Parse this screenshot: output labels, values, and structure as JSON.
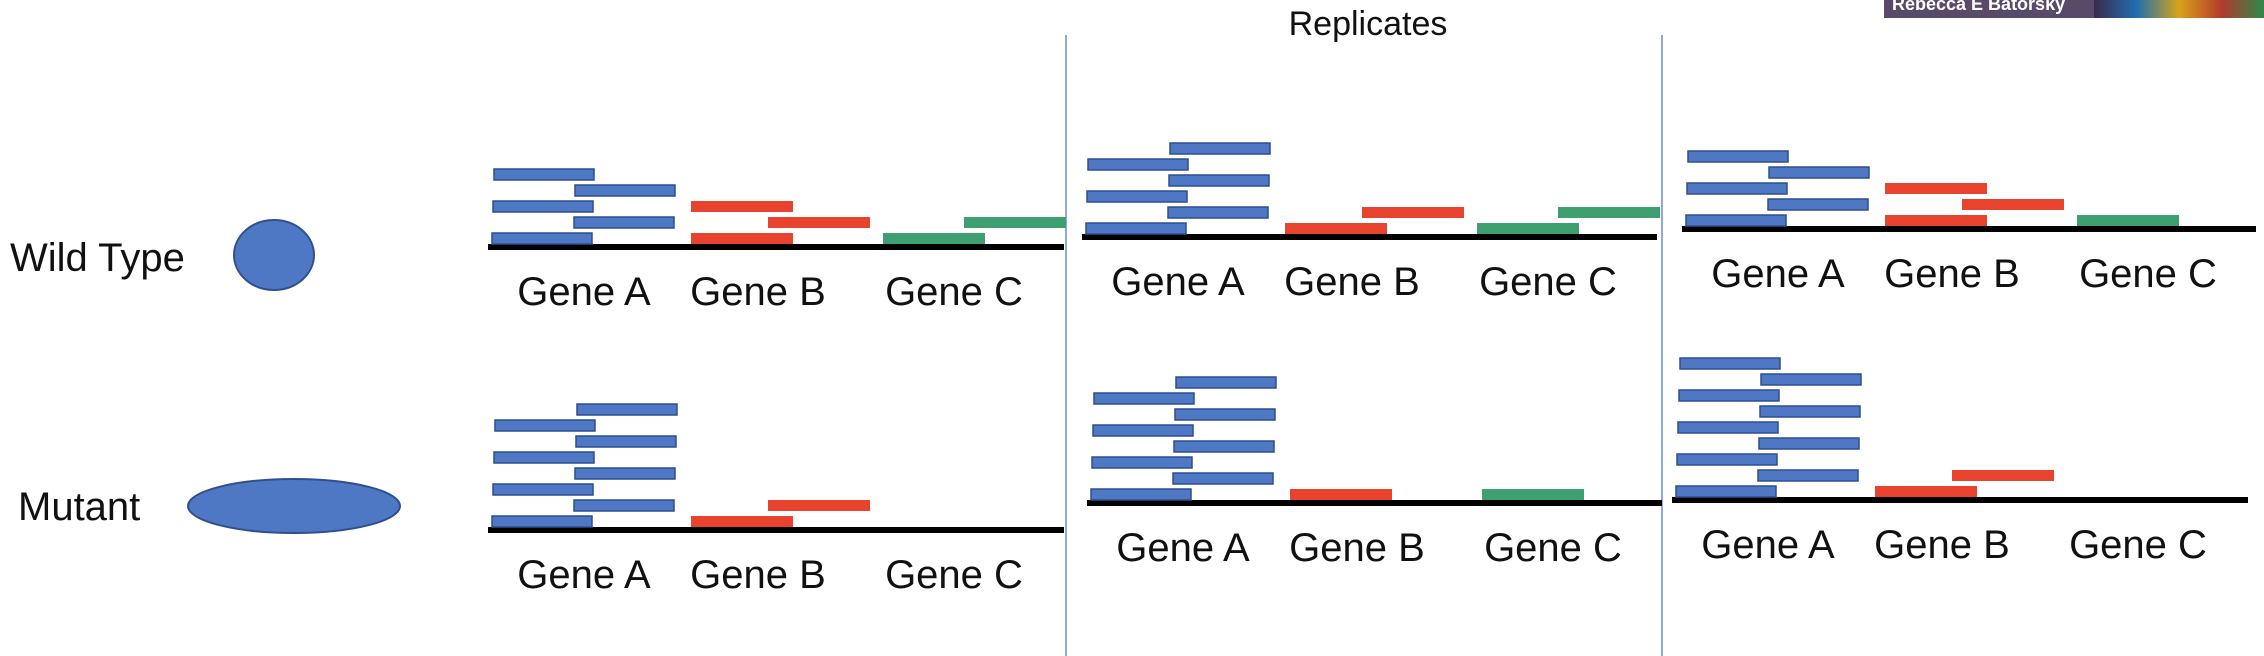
{
  "title": "Replicates",
  "webcam_name": "Rebecca E Batorsky",
  "conditions": [
    {
      "label": "Wild Type",
      "shape": "circle"
    },
    {
      "label": "Mutant",
      "shape": "ellipse"
    }
  ],
  "gene_labels": [
    "Gene A",
    "Gene B",
    "Gene C"
  ],
  "colors": {
    "gene_a": "#4f78c4",
    "gene_a_stroke": "#2f4f8f",
    "gene_b": "#e8432f",
    "gene_c": "#3ea070",
    "cell": "#4f78c4",
    "divider": "#8faadc",
    "baseline": "#000000"
  },
  "read_counts": {
    "wild_type": [
      {
        "gene_a": 5,
        "gene_b": 3,
        "gene_c": 2
      },
      {
        "gene_a": 6,
        "gene_b": 2,
        "gene_c": 2
      },
      {
        "gene_a": 5,
        "gene_b": 3,
        "gene_c": 1
      }
    ],
    "mutant": [
      {
        "gene_a": 8,
        "gene_b": 2,
        "gene_c": 0
      },
      {
        "gene_a": 8,
        "gene_b": 1,
        "gene_c": 1
      },
      {
        "gene_a": 9,
        "gene_b": 2,
        "gene_c": 0
      }
    ]
  }
}
